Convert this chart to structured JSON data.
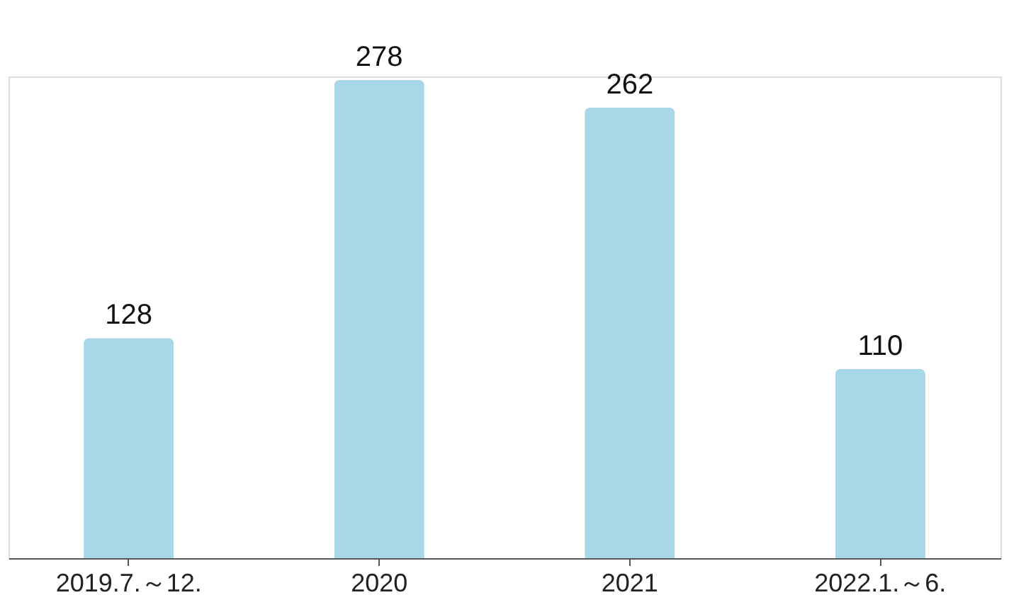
{
  "chart_data": {
    "type": "bar",
    "categories": [
      "2019.7.～12.",
      "2020",
      "2021",
      "2022.1.～6."
    ],
    "values": [
      128,
      278,
      262,
      110
    ],
    "color": "#a8d8e8",
    "data_labels": true,
    "tick_labels": "x",
    "grid": false
  }
}
